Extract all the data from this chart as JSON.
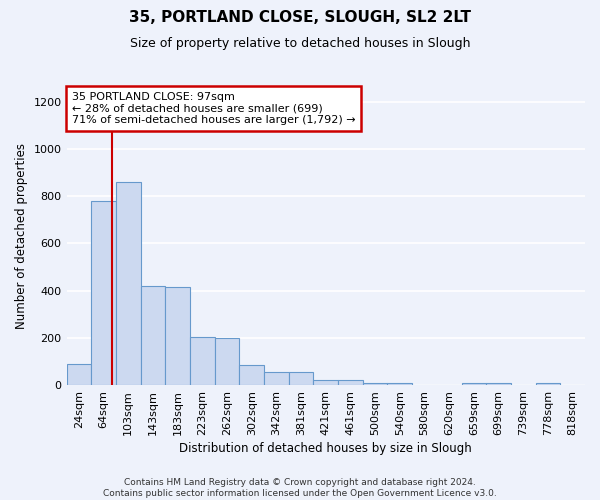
{
  "title": "35, PORTLAND CLOSE, SLOUGH, SL2 2LT",
  "subtitle": "Size of property relative to detached houses in Slough",
  "xlabel": "Distribution of detached houses by size in Slough",
  "ylabel": "Number of detached properties",
  "bin_labels": [
    "24sqm",
    "64sqm",
    "103sqm",
    "143sqm",
    "183sqm",
    "223sqm",
    "262sqm",
    "302sqm",
    "342sqm",
    "381sqm",
    "421sqm",
    "461sqm",
    "500sqm",
    "540sqm",
    "580sqm",
    "620sqm",
    "659sqm",
    "699sqm",
    "739sqm",
    "778sqm",
    "818sqm"
  ],
  "bar_heights": [
    90,
    780,
    860,
    420,
    415,
    205,
    200,
    83,
    55,
    55,
    20,
    20,
    10,
    10,
    0,
    0,
    10,
    10,
    0,
    10,
    0
  ],
  "bar_color": "#ccd9f0",
  "bar_edge_color": "#6699cc",
  "vline_color": "#cc0000",
  "annotation_text": "35 PORTLAND CLOSE: 97sqm\n← 28% of detached houses are smaller (699)\n71% of semi-detached houses are larger (1,792) →",
  "annotation_box_color": "white",
  "annotation_box_edge_color": "#cc0000",
  "ylim": [
    0,
    1260
  ],
  "yticks": [
    0,
    200,
    400,
    600,
    800,
    1000,
    1200
  ],
  "background_color": "#eef2fb",
  "grid_color": "#ffffff",
  "footer": "Contains HM Land Registry data © Crown copyright and database right 2024.\nContains public sector information licensed under the Open Government Licence v3.0.",
  "vline_x_index": 1.85
}
